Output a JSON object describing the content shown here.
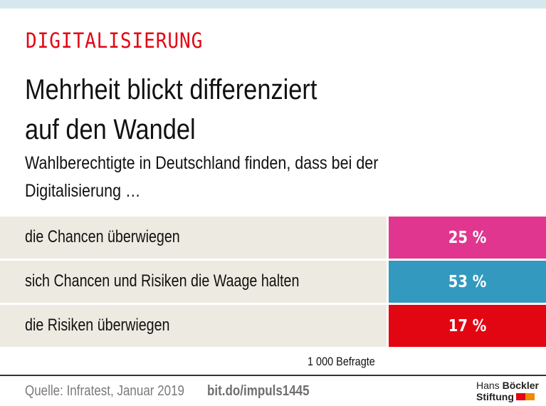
{
  "header": {
    "kicker": "DIGITALISIERUNG",
    "title_line1": "Mehrheit blickt differenziert",
    "title_line2": "auf den Wandel",
    "subtitle_line1": "Wahlberechtigte in Deutschland finden, dass bei der",
    "subtitle_line2": "Digitalisierung …"
  },
  "chart_data": {
    "type": "table",
    "title": "Mehrheit blickt differenziert auf den Wandel",
    "subtitle": "Wahlberechtigte in Deutschland finden, dass bei der Digitalisierung …",
    "categories": [
      "die Chancen überwiegen",
      "sich Chancen und Risiken die Waage halten",
      "die Risiken überwiegen"
    ],
    "values": [
      25,
      53,
      17
    ],
    "value_labels": [
      "25 %",
      "53 %",
      "17 %"
    ],
    "colors": [
      "#e0368f",
      "#3399bf",
      "#e20613"
    ],
    "unit": "%",
    "sample_note": "1 000 Befragte"
  },
  "footer": {
    "source": "Quelle: Infratest, Januar 2019",
    "link": "bit.do/impuls1445",
    "logo_line1_light": "Hans ",
    "logo_line1_bold": "Böckler",
    "logo_line2": "Stiftung",
    "logo_colors": [
      "#e30613",
      "#f08a00"
    ]
  },
  "colors": {
    "accent": "#e30613",
    "top_band": "#d5e8ee",
    "row_background": "#edebe1"
  }
}
